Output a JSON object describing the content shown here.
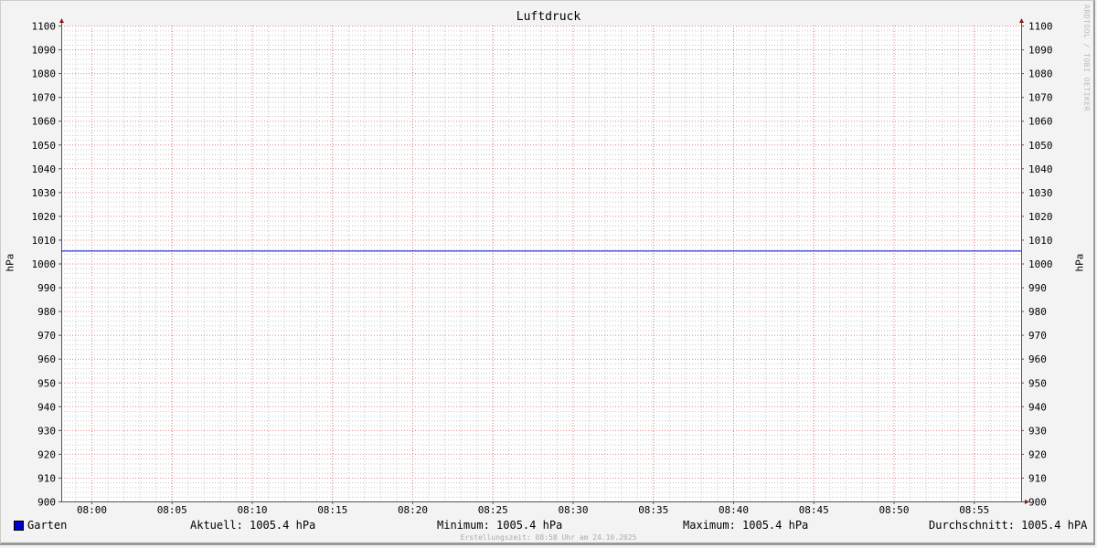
{
  "chart_data": {
    "type": "line",
    "title": "Luftdruck",
    "ylabel": "hPa",
    "ylabel_right": "hPa",
    "ylim": [
      900,
      1100
    ],
    "yticks": [
      900,
      910,
      920,
      930,
      940,
      950,
      960,
      970,
      980,
      990,
      1000,
      1010,
      1020,
      1030,
      1040,
      1050,
      1060,
      1070,
      1080,
      1090,
      1100
    ],
    "xticks": [
      "08:00",
      "08:05",
      "08:10",
      "08:15",
      "08:20",
      "08:25",
      "08:30",
      "08:35",
      "08:40",
      "08:45",
      "08:50",
      "08:55"
    ],
    "xlim": [
      "07:58",
      "08:58"
    ],
    "grid": true,
    "series": [
      {
        "name": "Garten",
        "color": "#0000cc",
        "x": [
          "07:58",
          "08:58"
        ],
        "values": [
          1005.4,
          1005.4
        ]
      }
    ],
    "watermark": "RRDTOOL / TOBI OETIKER"
  },
  "legend": {
    "series_name": "Garten",
    "current": "Aktuell: 1005.4 hPa",
    "minimum": "Minimum: 1005.4 hPa",
    "maximum": "Maximum: 1005.4 hPa",
    "average": "Durchschnitt: 1005.4 hPA"
  },
  "footer": "Erstellungszeit: 08:58 Uhr am 24.10.2025",
  "colors": {
    "major_grid": "#e08080",
    "minor_grid": "#c8c8c8",
    "axis": "#555555",
    "arrow": "#8b1a1a"
  }
}
